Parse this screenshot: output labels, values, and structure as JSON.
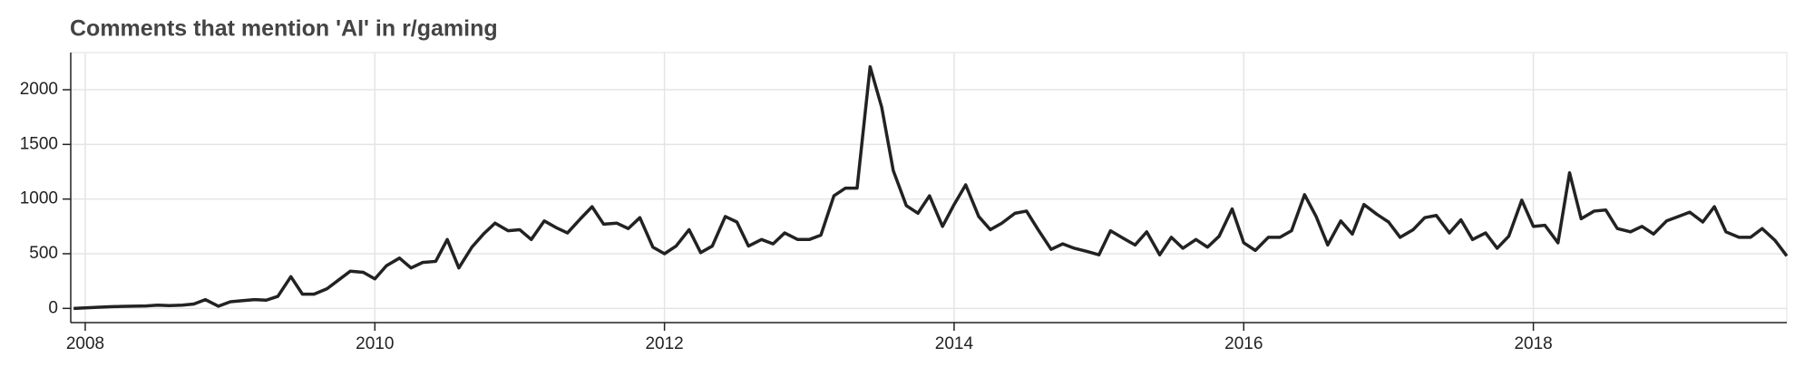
{
  "chart_data": {
    "type": "line",
    "title": "Comments that mention 'AI' in r/gaming",
    "x": [
      2007.92,
      2008,
      2008.08,
      2008.17,
      2008.25,
      2008.33,
      2008.42,
      2008.5,
      2008.58,
      2008.67,
      2008.75,
      2008.83,
      2008.92,
      2009,
      2009.08,
      2009.17,
      2009.25,
      2009.33,
      2009.42,
      2009.5,
      2009.58,
      2009.67,
      2009.75,
      2009.83,
      2009.92,
      2010,
      2010.08,
      2010.17,
      2010.25,
      2010.33,
      2010.42,
      2010.5,
      2010.58,
      2010.67,
      2010.75,
      2010.83,
      2010.92,
      2011,
      2011.08,
      2011.17,
      2011.25,
      2011.33,
      2011.42,
      2011.5,
      2011.58,
      2011.67,
      2011.75,
      2011.83,
      2011.92,
      2012,
      2012.08,
      2012.17,
      2012.25,
      2012.33,
      2012.42,
      2012.5,
      2012.58,
      2012.67,
      2012.75,
      2012.83,
      2012.92,
      2013,
      2013.08,
      2013.17,
      2013.25,
      2013.33,
      2013.42,
      2013.5,
      2013.58,
      2013.67,
      2013.75,
      2013.83,
      2013.92,
      2014,
      2014.08,
      2014.17,
      2014.25,
      2014.33,
      2014.42,
      2014.5,
      2014.58,
      2014.67,
      2014.75,
      2014.83,
      2014.92,
      2015,
      2015.08,
      2015.17,
      2015.25,
      2015.33,
      2015.42,
      2015.5,
      2015.58,
      2015.67,
      2015.75,
      2015.83,
      2015.92,
      2016,
      2016.08,
      2016.17,
      2016.25,
      2016.33,
      2016.42,
      2016.5,
      2016.58,
      2016.67,
      2016.75,
      2016.83,
      2016.92,
      2017,
      2017.08,
      2017.17,
      2017.25,
      2017.33,
      2017.42,
      2017.5,
      2017.58,
      2017.67,
      2017.75,
      2017.83,
      2017.92,
      2018,
      2018.08,
      2018.17,
      2018.25,
      2018.33,
      2018.42,
      2018.5,
      2018.58,
      2018.67,
      2018.75,
      2018.83,
      2018.92,
      2019,
      2019.08,
      2019.17,
      2019.25,
      2019.33,
      2019.42,
      2019.5,
      2019.58,
      2019.67,
      2019.75
    ],
    "series": [
      {
        "color": "#222222",
        "values": [
          0,
          5,
          10,
          15,
          18,
          20,
          22,
          30,
          25,
          30,
          40,
          80,
          20,
          60,
          70,
          80,
          75,
          110,
          290,
          130,
          130,
          180,
          260,
          340,
          330,
          270,
          390,
          460,
          370,
          420,
          430,
          630,
          370,
          560,
          680,
          780,
          710,
          720,
          630,
          800,
          740,
          690,
          820,
          930,
          770,
          780,
          730,
          830,
          560,
          500,
          570,
          720,
          510,
          570,
          840,
          790,
          570,
          630,
          590,
          690,
          630,
          630,
          670,
          1030,
          1100,
          1100,
          2210,
          1840,
          1260,
          940,
          870,
          1030,
          750,
          950,
          1130,
          840,
          720,
          780,
          870,
          890,
          720,
          540,
          590,
          550,
          520,
          490,
          710,
          640,
          580,
          700,
          490,
          650,
          550,
          630,
          560,
          660,
          910,
          600,
          530,
          650,
          650,
          710,
          1040,
          840,
          580,
          800,
          680,
          950,
          860,
          790,
          650,
          720,
          830,
          850,
          690,
          810,
          630,
          690,
          550,
          660,
          990,
          750,
          760,
          600,
          1240,
          820,
          890,
          900,
          730,
          700,
          750,
          680,
          800,
          840,
          880,
          790,
          930,
          700,
          650,
          650,
          730,
          620,
          480
        ]
      }
    ],
    "xlim": [
      2007.9,
      2019.75
    ],
    "xticks": [
      2008,
      2010,
      2012,
      2014,
      2016,
      2018
    ],
    "ylim": [
      -130,
      2340
    ],
    "yticks": [
      0,
      500,
      1000,
      1500,
      2000
    ],
    "grid": true
  }
}
